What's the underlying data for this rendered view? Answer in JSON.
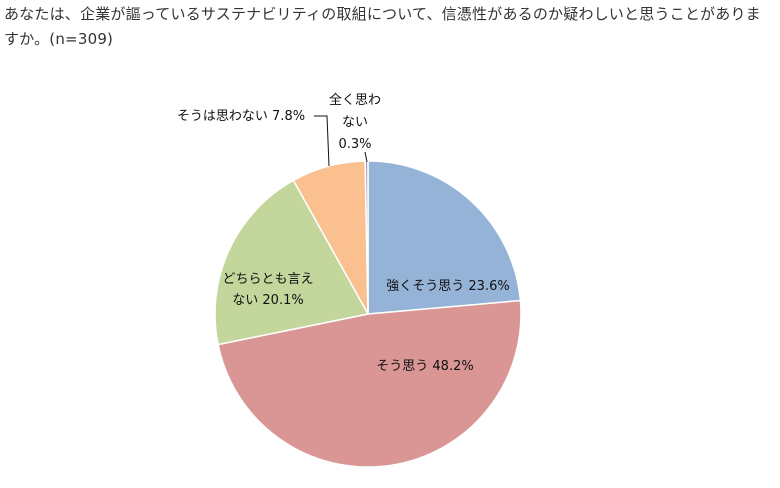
{
  "chart_data": {
    "type": "pie",
    "title": "あなたは、企業が謳っているサステナビリティの取組について、信憑性があるのか疑わしいと思うことがありますか。(n=309)",
    "unit": "%",
    "slices": [
      {
        "label": "強くそう思う",
        "value": 23.6,
        "value_label": "23.6%",
        "color": "#95b3d7"
      },
      {
        "label": "そう思う",
        "value": 48.2,
        "value_label": "48.2%",
        "color": "#d99694"
      },
      {
        "label": "どちらとも言えない",
        "value": 20.1,
        "value_label": "20.1%",
        "color": "#c3d69b"
      },
      {
        "label": "そうは思わない",
        "value": 7.8,
        "value_label": "7.8%",
        "color": "#fac090"
      },
      {
        "label": "全く思わない",
        "value": 0.3,
        "value_label": "0.3%",
        "color": "#b3a2c7"
      }
    ],
    "data_labels": [
      {
        "lines": [
          "強くそう思う 23.6%"
        ]
      },
      {
        "lines": [
          "そう思う 48.2%"
        ]
      },
      {
        "lines": [
          "どちらとも言え",
          "ない 20.1%"
        ]
      },
      {
        "lines": [
          "そうは思わない 7.8%"
        ]
      },
      {
        "lines": [
          "全く思わ",
          "ない",
          "0.3%"
        ]
      }
    ]
  }
}
